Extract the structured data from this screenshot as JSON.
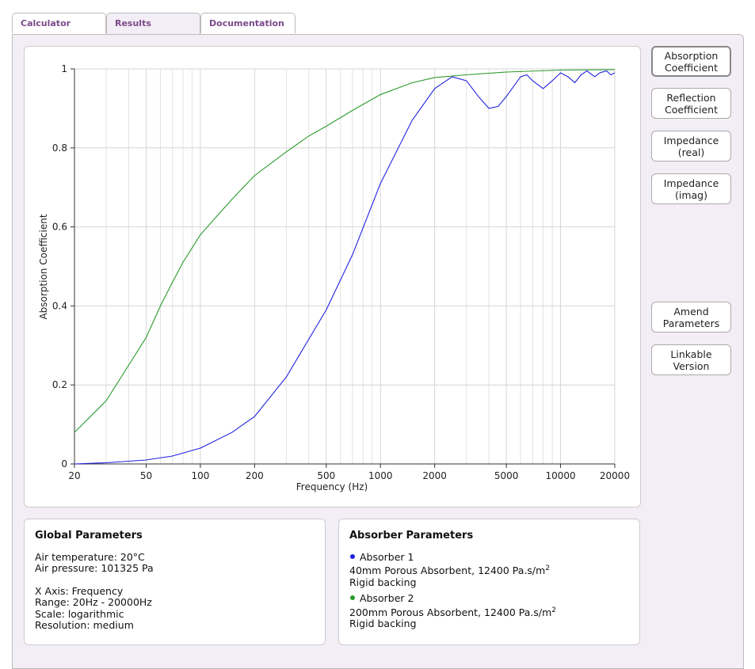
{
  "tabs": [
    "Calculator",
    "Results",
    "Documentation"
  ],
  "chart_data": {
    "type": "line",
    "x_label": "Frequency (Hz)",
    "y_label": "Absorption Coefficient",
    "log_x": true,
    "grid": true,
    "xlim": [
      20,
      20000
    ],
    "xticks": [
      20,
      50,
      100,
      200,
      500,
      1000,
      2000,
      5000,
      10000,
      20000
    ],
    "x_minor_ticks": [
      30,
      40,
      60,
      70,
      80,
      90,
      300,
      400,
      600,
      700,
      800,
      900,
      3000,
      4000,
      6000,
      7000,
      8000,
      9000
    ],
    "ylim": [
      0,
      1
    ],
    "yticks": [
      0,
      0.2,
      0.4,
      0.6,
      0.8,
      1
    ],
    "series": [
      {
        "name": "Absorber 1",
        "color": "#2020e0",
        "x": [
          20,
          30,
          50,
          70,
          100,
          150,
          200,
          300,
          500,
          700,
          1000,
          1500,
          2000,
          2500,
          3000,
          3500,
          4000,
          4500,
          5000,
          6000,
          6500,
          7000,
          8000,
          9000,
          10000,
          11000,
          12000,
          13000,
          14000,
          15500,
          16500,
          18000,
          19000,
          20000
        ],
        "values": [
          0.0,
          0.003,
          0.01,
          0.02,
          0.04,
          0.08,
          0.12,
          0.22,
          0.39,
          0.53,
          0.71,
          0.87,
          0.95,
          0.98,
          0.97,
          0.93,
          0.9,
          0.905,
          0.93,
          0.98,
          0.985,
          0.97,
          0.95,
          0.97,
          0.99,
          0.98,
          0.965,
          0.985,
          0.995,
          0.98,
          0.99,
          0.995,
          0.985,
          0.99
        ]
      },
      {
        "name": "Absorber 2",
        "color": "#2a9a2a",
        "x": [
          20,
          30,
          40,
          50,
          60,
          70,
          80,
          100,
          125,
          150,
          200,
          300,
          400,
          500,
          700,
          1000,
          1500,
          2000,
          3000,
          5000,
          10000,
          20000
        ],
        "values": [
          0.08,
          0.16,
          0.25,
          0.32,
          0.4,
          0.46,
          0.51,
          0.58,
          0.63,
          0.67,
          0.73,
          0.79,
          0.83,
          0.855,
          0.895,
          0.935,
          0.965,
          0.978,
          0.985,
          0.992,
          0.997,
          0.998
        ]
      }
    ]
  },
  "buttons": [
    "Absorption Coefficient",
    "Reflection Coefficient",
    "Impedance (real)",
    "Impedance (imag)",
    "Amend Parameters",
    "Linkable Version"
  ],
  "global_parameters": {
    "title": "Global Parameters",
    "lines": [
      "Air temperature: 20°C",
      "Air pressure: 101325 Pa",
      "X Axis: Frequency",
      "Range: 20Hz - 20000Hz",
      "Scale: logarithmic",
      "Resolution: medium"
    ]
  },
  "absorber_parameters": {
    "title": "Absorber Parameters",
    "absorbers": [
      {
        "description": "40mm Porous Absorbent, 12400 Pa.s/m",
        "superscript": "2",
        "backing": "Rigid backing"
      },
      {
        "description": "200mm Porous Absorbent, 12400 Pa.s/m",
        "superscript": "2",
        "backing": "Rigid backing"
      }
    ]
  }
}
